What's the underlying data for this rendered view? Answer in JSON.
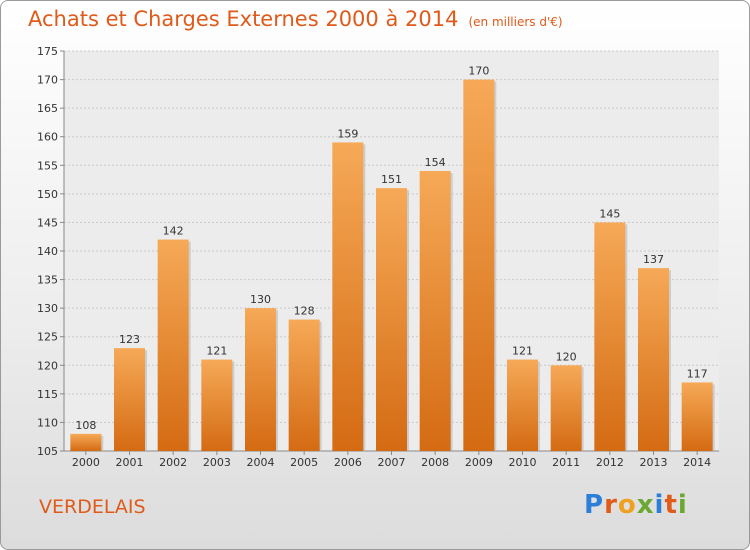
{
  "title": "Achats et Charges Externes 2000 à 2014",
  "unit": "(en milliers d'€)",
  "place": "VERDELAIS",
  "logo": {
    "letters": [
      "P",
      "r",
      "o",
      "x",
      "i",
      "t",
      "i"
    ],
    "colors": [
      "#2b7fd8",
      "#e05a1a",
      "#f0a020",
      "#6aa832",
      "#2b7fd8",
      "#e05a1a",
      "#6aa832"
    ]
  },
  "colors": {
    "bar": "#f0882a",
    "bar_light": "#f6a957",
    "bar_dark": "#d46b13",
    "title": "#e05a1a"
  },
  "chart_data": {
    "type": "bar",
    "categories": [
      "2000",
      "2001",
      "2002",
      "2003",
      "2004",
      "2005",
      "2006",
      "2007",
      "2008",
      "2009",
      "2010",
      "2011",
      "2012",
      "2013",
      "2014"
    ],
    "values": [
      108,
      123,
      142,
      121,
      130,
      128,
      159,
      151,
      154,
      170,
      121,
      120,
      145,
      137,
      117
    ],
    "ylim": [
      105,
      175
    ],
    "yticks": [
      105,
      110,
      115,
      120,
      125,
      130,
      135,
      140,
      145,
      150,
      155,
      160,
      165,
      170,
      175
    ],
    "grid": true,
    "legend": "none"
  }
}
